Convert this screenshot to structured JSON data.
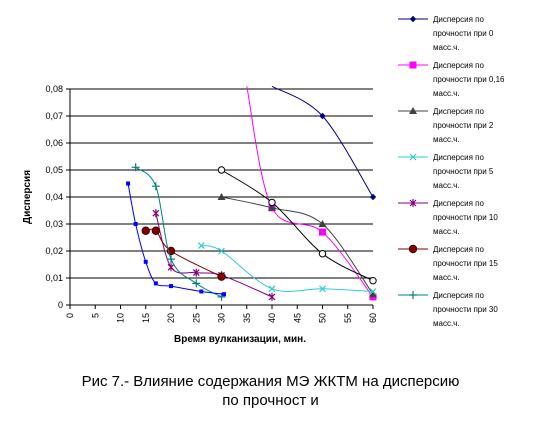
{
  "chart_data": {
    "type": "line",
    "xlabel": "Время вулканизации, мин.",
    "ylabel": "Дисперсия",
    "xlim": [
      0,
      60
    ],
    "ylim": [
      0,
      0.08
    ],
    "xticks": [
      "0",
      "5",
      "10",
      "15",
      "20",
      "25",
      "30",
      "35",
      "40",
      "45",
      "50",
      "55",
      "60"
    ],
    "yticks": [
      "0",
      "0,01",
      "0,02",
      "0,03",
      "0,04",
      "0,05",
      "0,06",
      "0,07",
      "0,08"
    ],
    "grid": "horizontal",
    "legend_position": "right",
    "series": [
      {
        "name": [
          "Дисперсия по",
          "прочности при 0",
          "масс.ч."
        ],
        "color": "#000080",
        "marker": "diamond",
        "points": [
          [
            40,
            0.081
          ],
          [
            50,
            0.07
          ],
          [
            60,
            0.04
          ]
        ]
      },
      {
        "name": [
          "Дисперсия по",
          "прочности при 0,16",
          "масс.ч."
        ],
        "color": "#ff00ff",
        "marker": "square",
        "points": [
          [
            35,
            0.081
          ],
          [
            40,
            0.036
          ],
          [
            50,
            0.027
          ],
          [
            60,
            0.003
          ]
        ]
      },
      {
        "name": [
          "Дисперсия по",
          "прочности при 2",
          "масс.ч."
        ],
        "color": "#404040",
        "marker": "triangle",
        "points": [
          [
            30,
            0.04
          ],
          [
            40,
            0.036
          ],
          [
            50,
            0.03
          ],
          [
            60,
            0.004
          ]
        ]
      },
      {
        "name": [
          "Дисперсия по",
          "прочности при 5",
          "масс.ч."
        ],
        "color": "#33cccc",
        "marker": "x",
        "points": [
          [
            26,
            0.022
          ],
          [
            30,
            0.02
          ],
          [
            40,
            0.006
          ],
          [
            50,
            0.006
          ],
          [
            60,
            0.005
          ]
        ]
      },
      {
        "name": [
          "Дисперсия по",
          "прочности при 10",
          "масс.ч."
        ],
        "color": "#800080",
        "marker": "star",
        "points": [
          [
            17,
            0.034
          ],
          [
            20,
            0.014
          ],
          [
            25,
            0.012
          ],
          [
            30,
            0.011
          ],
          [
            40,
            0.003
          ]
        ]
      },
      {
        "name": [
          "Дисперсия по",
          "прочности при 15",
          "масс.ч."
        ],
        "color": "#800000",
        "marker": "circle",
        "points": [
          [
            15,
            0.0275
          ],
          [
            17,
            0.0275
          ],
          [
            20,
            0.02
          ],
          [
            30,
            0.0105
          ]
        ]
      },
      {
        "name": [
          "Дисперсия по",
          "прочности при 30",
          "масс.ч."
        ],
        "color": "#008080",
        "marker": "plus",
        "points": [
          [
            13,
            0.051
          ],
          [
            17,
            0.044
          ],
          [
            20,
            0.017
          ],
          [
            25,
            0.008
          ],
          [
            30,
            0.003
          ]
        ]
      },
      {
        "name": "",
        "color": "#0000ff",
        "marker": "smallsquare",
        "show_in_legend": false,
        "points": [
          [
            11.5,
            0.045
          ],
          [
            13,
            0.03
          ],
          [
            15,
            0.016
          ],
          [
            17,
            0.008
          ],
          [
            20,
            0.007
          ],
          [
            26,
            0.005
          ],
          [
            30.5,
            0.004
          ]
        ]
      },
      {
        "name": "",
        "color": "#000000",
        "marker": "hollowcircle",
        "show_in_legend": false,
        "points": [
          [
            30,
            0.05
          ],
          [
            40,
            0.038
          ],
          [
            50,
            0.019
          ],
          [
            60,
            0.009
          ]
        ]
      }
    ]
  },
  "caption": {
    "line1": "Рис 7.- Влияние содержания МЭ ЖКТМ на дисперсию",
    "line2": "по прочност и"
  }
}
